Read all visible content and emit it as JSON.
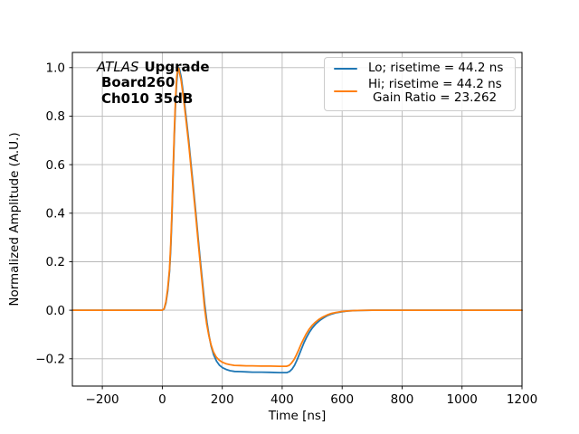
{
  "figure": {
    "background": "#ffffff"
  },
  "annotation": {
    "experiment": "ATLAS",
    "program": "Upgrade",
    "board": "Board260",
    "channel": "Ch010 35dB"
  },
  "axes": {
    "xlabel": "Time [ns]",
    "ylabel": "Normalized Amplitude (A.U.)"
  },
  "legend": {
    "entries": [
      {
        "color": "#1f77b4",
        "lines": [
          "Lo; risetime = 44.2 ns",
          ""
        ]
      },
      {
        "color": "#ff7f0e",
        "lines": [
          "Hi; risetime = 44.2 ns",
          "Gain Ratio = 23.262"
        ]
      }
    ]
  },
  "chart_data": {
    "type": "line",
    "title": "",
    "xlabel": "Time [ns]",
    "ylabel": "Normalized Amplitude (A.U.)",
    "xlim": [
      -300,
      1200
    ],
    "ylim": [
      -0.3125,
      1.0625
    ],
    "x_ticks": [
      -200,
      0,
      200,
      400,
      600,
      800,
      1000,
      1200
    ],
    "y_ticks": [
      -0.2,
      0.0,
      0.2,
      0.4,
      0.6,
      0.8,
      1.0
    ],
    "grid": true,
    "grid_color": "#b8b8b8",
    "frame_color": "#000000",
    "legend_position": "upper right",
    "annotation_text": "ATLAS Upgrade\nBoard260\nCh010 35dB",
    "series": [
      {
        "name": "Lo; risetime = 44.2 ns",
        "color": "#1f77b4",
        "points": [
          [
            -300,
            0
          ],
          [
            -150,
            0
          ],
          [
            -50,
            0
          ],
          [
            -10,
            0
          ],
          [
            0,
            0
          ],
          [
            6,
            0.005
          ],
          [
            12,
            0.03
          ],
          [
            18,
            0.08
          ],
          [
            24,
            0.16
          ],
          [
            28,
            0.25
          ],
          [
            32,
            0.38
          ],
          [
            36,
            0.55
          ],
          [
            40,
            0.72
          ],
          [
            44,
            0.85
          ],
          [
            48,
            0.94
          ],
          [
            52,
            0.99
          ],
          [
            55,
            1.0
          ],
          [
            58,
            0.99
          ],
          [
            63,
            0.96
          ],
          [
            68,
            0.915
          ],
          [
            74,
            0.855
          ],
          [
            80,
            0.79
          ],
          [
            88,
            0.7
          ],
          [
            96,
            0.6
          ],
          [
            104,
            0.5
          ],
          [
            112,
            0.4
          ],
          [
            120,
            0.29
          ],
          [
            128,
            0.19
          ],
          [
            135,
            0.105
          ],
          [
            142,
            0.02
          ],
          [
            149,
            -0.05
          ],
          [
            156,
            -0.105
          ],
          [
            163,
            -0.148
          ],
          [
            171,
            -0.183
          ],
          [
            181,
            -0.21
          ],
          [
            191,
            -0.227
          ],
          [
            201,
            -0.237
          ],
          [
            213,
            -0.244
          ],
          [
            226,
            -0.249
          ],
          [
            241,
            -0.252
          ],
          [
            261,
            -0.253
          ],
          [
            281,
            -0.254
          ],
          [
            301,
            -0.255
          ],
          [
            331,
            -0.255
          ],
          [
            361,
            -0.256
          ],
          [
            391,
            -0.257
          ],
          [
            416,
            -0.257
          ],
          [
            425,
            -0.252
          ],
          [
            433,
            -0.242
          ],
          [
            441,
            -0.227
          ],
          [
            449,
            -0.206
          ],
          [
            457,
            -0.182
          ],
          [
            465,
            -0.157
          ],
          [
            473,
            -0.133
          ],
          [
            481,
            -0.112
          ],
          [
            491,
            -0.09
          ],
          [
            501,
            -0.072
          ],
          [
            513,
            -0.055
          ],
          [
            525,
            -0.042
          ],
          [
            537,
            -0.032
          ],
          [
            551,
            -0.022
          ],
          [
            566,
            -0.015
          ],
          [
            581,
            -0.01
          ],
          [
            601,
            -0.006
          ],
          [
            621,
            -0.003
          ],
          [
            651,
            -0.001
          ],
          [
            701,
            0
          ],
          [
            800,
            0
          ],
          [
            900,
            0
          ],
          [
            1000,
            0
          ],
          [
            1100,
            0
          ],
          [
            1200,
            0
          ]
        ]
      },
      {
        "name": "Hi; risetime = 44.2 ns\nGain Ratio = 23.262",
        "color": "#ff7f0e",
        "points": [
          [
            -300,
            0
          ],
          [
            -150,
            0
          ],
          [
            -50,
            0
          ],
          [
            -10,
            0
          ],
          [
            0,
            0
          ],
          [
            6,
            0.006
          ],
          [
            12,
            0.035
          ],
          [
            18,
            0.09
          ],
          [
            24,
            0.17
          ],
          [
            28,
            0.27
          ],
          [
            32,
            0.4
          ],
          [
            36,
            0.57
          ],
          [
            40,
            0.74
          ],
          [
            44,
            0.87
          ],
          [
            48,
            0.96
          ],
          [
            52,
            1.0
          ],
          [
            55,
            0.995
          ],
          [
            58,
            0.975
          ],
          [
            63,
            0.945
          ],
          [
            68,
            0.9
          ],
          [
            74,
            0.84
          ],
          [
            80,
            0.775
          ],
          [
            88,
            0.685
          ],
          [
            96,
            0.585
          ],
          [
            104,
            0.485
          ],
          [
            112,
            0.385
          ],
          [
            120,
            0.275
          ],
          [
            128,
            0.175
          ],
          [
            135,
            0.09
          ],
          [
            141,
            0.01
          ],
          [
            148,
            -0.055
          ],
          [
            155,
            -0.103
          ],
          [
            162,
            -0.14
          ],
          [
            170,
            -0.17
          ],
          [
            180,
            -0.193
          ],
          [
            190,
            -0.206
          ],
          [
            200,
            -0.214
          ],
          [
            212,
            -0.22
          ],
          [
            225,
            -0.224
          ],
          [
            240,
            -0.227
          ],
          [
            260,
            -0.228
          ],
          [
            280,
            -0.229
          ],
          [
            300,
            -0.229
          ],
          [
            330,
            -0.23
          ],
          [
            360,
            -0.23
          ],
          [
            390,
            -0.231
          ],
          [
            414,
            -0.231
          ],
          [
            423,
            -0.227
          ],
          [
            431,
            -0.218
          ],
          [
            439,
            -0.204
          ],
          [
            447,
            -0.185
          ],
          [
            455,
            -0.163
          ],
          [
            463,
            -0.14
          ],
          [
            471,
            -0.119
          ],
          [
            479,
            -0.1
          ],
          [
            489,
            -0.08
          ],
          [
            499,
            -0.064
          ],
          [
            511,
            -0.049
          ],
          [
            523,
            -0.037
          ],
          [
            535,
            -0.028
          ],
          [
            549,
            -0.02
          ],
          [
            564,
            -0.013
          ],
          [
            579,
            -0.009
          ],
          [
            599,
            -0.005
          ],
          [
            619,
            -0.003
          ],
          [
            649,
            -0.001
          ],
          [
            699,
            0
          ],
          [
            800,
            0
          ],
          [
            1000,
            0
          ],
          [
            1200,
            0
          ]
        ]
      }
    ]
  }
}
